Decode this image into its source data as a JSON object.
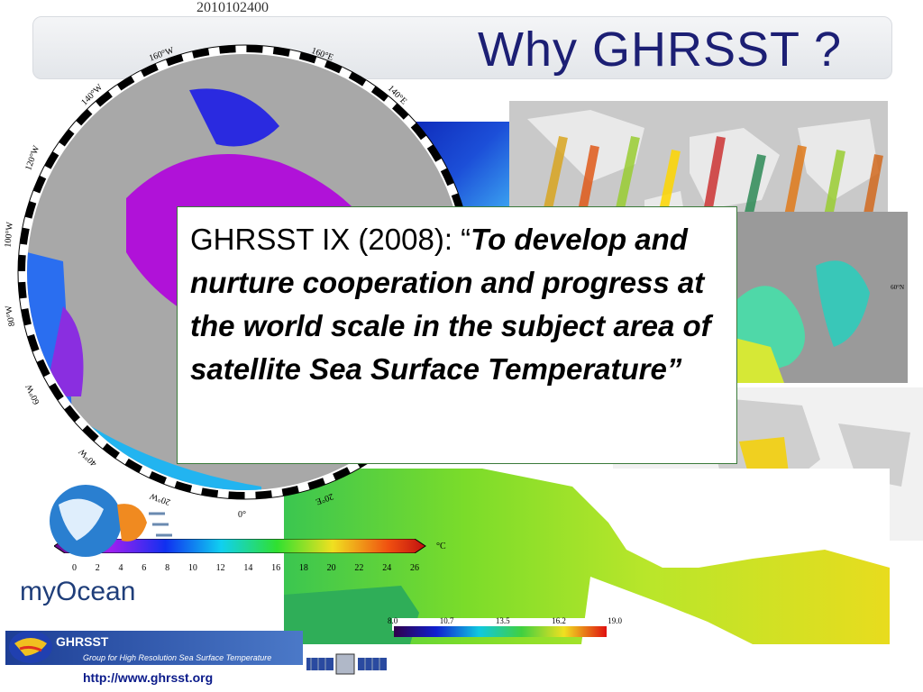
{
  "timestamp": "2010102400",
  "title": "Why GHRSST ?",
  "quote": {
    "prefix": "GHRSST IX (2008): “",
    "emphasis": "To develop and nurture cooperation and progress at the world scale in the subject area of satellite Sea Surface Temperature”"
  },
  "polar_map": {
    "longitude_labels": [
      "160°W",
      "160°E",
      "140°W",
      "140°E",
      "120°W",
      "100°W",
      "80°W",
      "60°W",
      "40°W",
      "20°W",
      "0°",
      "20°E"
    ],
    "colorbar_ticks": [
      "0",
      "2",
      "4",
      "6",
      "8",
      "10",
      "12",
      "14",
      "16",
      "18",
      "20",
      "22",
      "24",
      "26"
    ],
    "colorbar_unit": "°C"
  },
  "med_map": {
    "colorbar_ticks": [
      "8.0",
      "10.7",
      "13.5",
      "16.2",
      "19.0"
    ],
    "lat_label": "60°N"
  },
  "logos": {
    "myocean": "myOcean",
    "ghrsst_name": "GHRSST",
    "ghrsst_tagline": "Group for High Resolution Sea Surface Temperature",
    "ghrsst_url": "http://www.ghrsst.org"
  }
}
